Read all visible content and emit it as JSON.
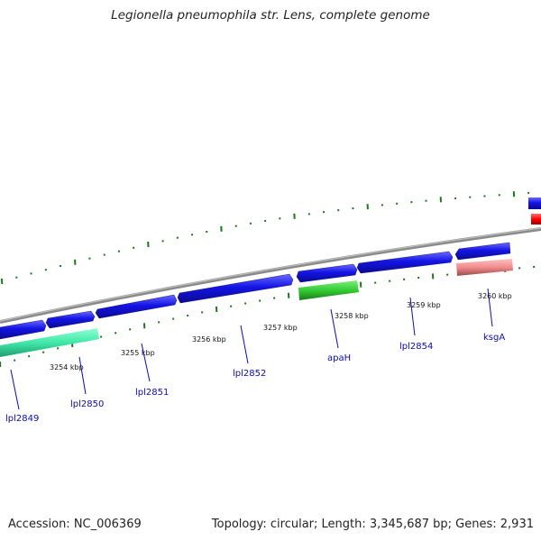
{
  "title": "Legionella pneumophila str. Lens, complete genome",
  "accession": "Accession: NC_006369",
  "summary": "Topology: circular; Length: 3,345,687 bp; Genes: 2,931",
  "ruler_labels": [
    "3254 kbp",
    "3255 kbp",
    "3256 kbp",
    "3257 kbp",
    "3258 kbp",
    "3259 kbp",
    "3260 kbp"
  ],
  "gene_labels": [
    "lpl2849",
    "lpl2850",
    "lpl2851",
    "lpl2852",
    "apaH",
    "lpl2854",
    "ksgA"
  ],
  "colors": {
    "cds_forward": "#1414e6",
    "rrna_like": "#40e0a0",
    "highlight_green": "#33cc33",
    "highlight_pink": "#f08c8c",
    "red_feature": "#ff0000",
    "backbone": "#888888",
    "tick": "#1a7a1a",
    "label": "#0a0ab4"
  }
}
